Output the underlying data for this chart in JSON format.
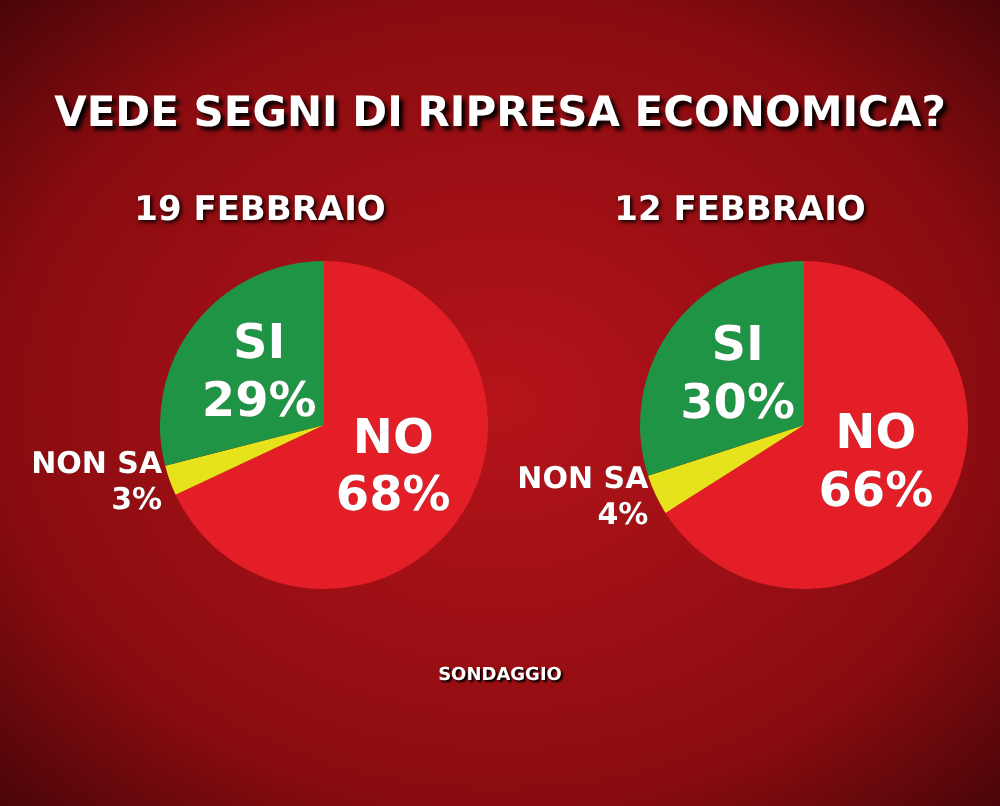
{
  "chart_data": [
    {
      "type": "pie",
      "title": "VEDE SEGNI DI RIPRESA ECONOMICA?",
      "subtitle": "19 FEBBRAIO",
      "categories": [
        "NO",
        "NON SA",
        "SI"
      ],
      "values": [
        68,
        3,
        29
      ],
      "value_labels": [
        "68%",
        "3%",
        "29%"
      ],
      "colors": [
        "#e41e26",
        "#e6e21c",
        "#1e9444"
      ],
      "legend": false,
      "annotations": [
        "SONDAGGIO"
      ]
    },
    {
      "type": "pie",
      "subtitle": "12 FEBBRAIO",
      "categories": [
        "NO",
        "NON SA",
        "SI"
      ],
      "values": [
        66,
        4,
        30
      ],
      "value_labels": [
        "66%",
        "4%",
        "30%"
      ],
      "colors": [
        "#e41e26",
        "#e6e21c",
        "#1e9444"
      ],
      "legend": false
    }
  ]
}
